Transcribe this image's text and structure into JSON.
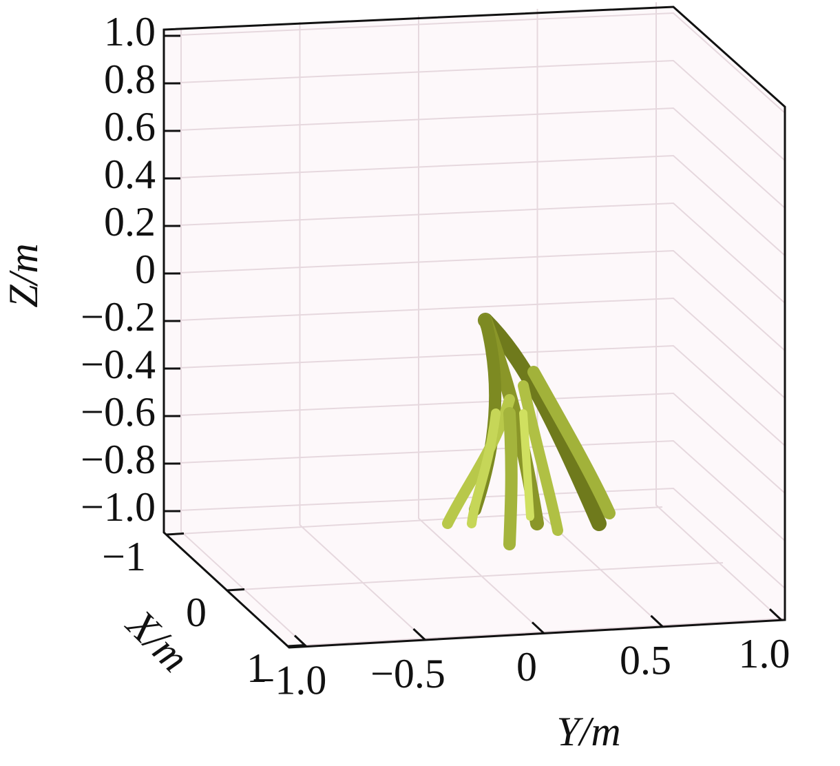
{
  "chart_data": {
    "type": "line3d",
    "x_label": "X/m",
    "y_label": "Y/m",
    "z_label": "Z/m",
    "xlim": [
      -1,
      1
    ],
    "xticks": [
      {
        "value": -1,
        "label": "−1"
      },
      0,
      1
    ],
    "ylim": [
      -1,
      1
    ],
    "yticks": [
      {
        "value": -1,
        "label": "−1.0"
      },
      {
        "value": -0.5,
        "label": "−0.5"
      },
      0,
      0.5,
      {
        "value": 1,
        "label": "1.0"
      }
    ],
    "zlim": [
      -1,
      1
    ],
    "zticks": [
      {
        "value": 1,
        "label": "1.0"
      },
      0.8,
      0.6,
      0.4,
      0.2,
      0,
      {
        "value": -0.2,
        "label": "−0.2"
      },
      {
        "value": -0.4,
        "label": "−0.4"
      },
      {
        "value": -0.6,
        "label": "−0.6"
      },
      {
        "value": -0.8,
        "label": "−0.8"
      },
      {
        "value": -1,
        "label": "−1.0"
      }
    ],
    "grid": true,
    "color": "#9aaa2a"
  }
}
